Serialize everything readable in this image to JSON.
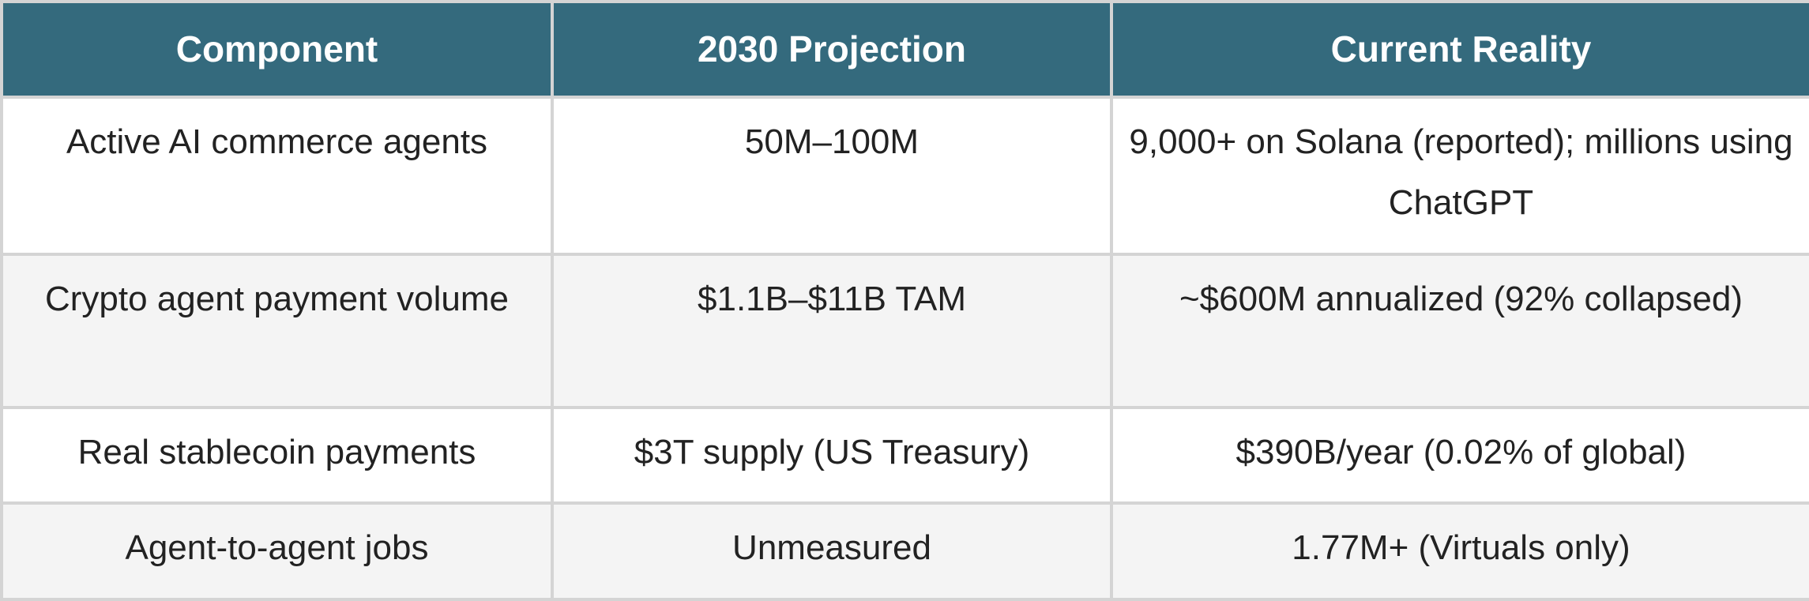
{
  "header": {
    "columns": [
      "Component",
      "2030 Projection",
      "Current Reality"
    ]
  },
  "table": {
    "rows": [
      [
        "Active AI commerce agents",
        "50M–100M",
        "9,000+ on Solana (reported); millions using ChatGPT"
      ],
      [
        "Crypto agent payment volume",
        "$1.1B–$11B TAM",
        "~$600M annualized (92% collapsed)"
      ],
      [
        "Real stablecoin payments",
        "$3T supply (US Treasury)",
        "$390B/year (0.02% of global)"
      ],
      [
        "Agent-to-agent jobs",
        "Unmeasured",
        "1.77M+ (Virtuals only)"
      ]
    ]
  }
}
